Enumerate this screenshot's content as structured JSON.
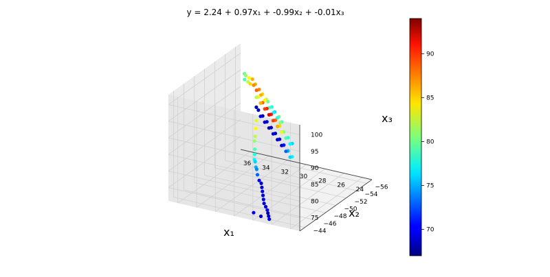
{
  "chart_data": {
    "type": "scatter",
    "projection": "3d",
    "title": "y = 2.24 + 0.97x₁ + -0.99x₂ + -0.01x₃",
    "xlabel": "x₁",
    "ylabel": "x₂",
    "zlabel": "x₃",
    "xlim": [
      23,
      37
    ],
    "ylim": [
      -57,
      -43
    ],
    "zlim": [
      71,
      103
    ],
    "x_ticks": [
      24,
      26,
      28,
      30,
      32,
      34,
      36
    ],
    "y_ticks": [
      -44,
      -46,
      -48,
      -50,
      -52,
      -54,
      -56
    ],
    "z_ticks": [
      75,
      80,
      85,
      90,
      95,
      100
    ],
    "colorbar": {
      "cmap": "jet",
      "range": [
        67,
        94
      ],
      "ticks": [
        70,
        75,
        80,
        85,
        90
      ]
    },
    "grid": true,
    "points": [
      {
        "x": 35.5,
        "y": -55,
        "z": 97,
        "c": 80
      },
      {
        "x": 35.2,
        "y": -54.5,
        "z": 96,
        "c": 79
      },
      {
        "x": 34.8,
        "y": -54,
        "z": 98,
        "c": 81
      },
      {
        "x": 34.3,
        "y": -53.5,
        "z": 97,
        "c": 82
      },
      {
        "x": 33.9,
        "y": -53,
        "z": 99,
        "c": 84
      },
      {
        "x": 33.5,
        "y": -52.5,
        "z": 98,
        "c": 85
      },
      {
        "x": 33.1,
        "y": -52.2,
        "z": 100,
        "c": 86
      },
      {
        "x": 32.7,
        "y": -51.7,
        "z": 99,
        "c": 87
      },
      {
        "x": 32.3,
        "y": -51.3,
        "z": 100,
        "c": 86
      },
      {
        "x": 31.9,
        "y": -50.8,
        "z": 99,
        "c": 88
      },
      {
        "x": 31.4,
        "y": -50.4,
        "z": 100,
        "c": 87
      },
      {
        "x": 31,
        "y": -50,
        "z": 99,
        "c": 86
      },
      {
        "x": 30.6,
        "y": -49.6,
        "z": 100,
        "c": 85
      },
      {
        "x": 30.1,
        "y": -49.1,
        "z": 99,
        "c": 84
      },
      {
        "x": 29.7,
        "y": -48.7,
        "z": 100,
        "c": 82
      },
      {
        "x": 29.3,
        "y": -48.3,
        "z": 100,
        "c": 80
      },
      {
        "x": 28.9,
        "y": -47.8,
        "z": 99,
        "c": 79
      },
      {
        "x": 28.4,
        "y": -47.4,
        "z": 100,
        "c": 78
      },
      {
        "x": 28,
        "y": -47,
        "z": 99,
        "c": 77
      },
      {
        "x": 27.6,
        "y": -46.5,
        "z": 100,
        "c": 76
      },
      {
        "x": 27.1,
        "y": -46.1,
        "z": 99,
        "c": 78
      },
      {
        "x": 26.7,
        "y": -45.7,
        "z": 100,
        "c": 80
      },
      {
        "x": 26.3,
        "y": -45.2,
        "z": 99,
        "c": 81
      },
      {
        "x": 25.9,
        "y": -44.8,
        "z": 100,
        "c": 79
      },
      {
        "x": 34.5,
        "y": -55.5,
        "z": 90,
        "c": 82
      },
      {
        "x": 34,
        "y": -55,
        "z": 91,
        "c": 84
      },
      {
        "x": 33.5,
        "y": -54.5,
        "z": 90,
        "c": 86
      },
      {
        "x": 33,
        "y": -54,
        "z": 91,
        "c": 88
      },
      {
        "x": 32.5,
        "y": -53.5,
        "z": 90,
        "c": 89
      },
      {
        "x": 32,
        "y": -53,
        "z": 91,
        "c": 90
      },
      {
        "x": 31.5,
        "y": -52.5,
        "z": 90,
        "c": 91
      },
      {
        "x": 31,
        "y": -52,
        "z": 91,
        "c": 90
      },
      {
        "x": 30.5,
        "y": -51.5,
        "z": 90,
        "c": 89
      },
      {
        "x": 30,
        "y": -51,
        "z": 91,
        "c": 88
      },
      {
        "x": 29.5,
        "y": -50.5,
        "z": 90,
        "c": 86
      },
      {
        "x": 29,
        "y": -50,
        "z": 91,
        "c": 85
      },
      {
        "x": 28.5,
        "y": -49.5,
        "z": 90,
        "c": 83
      },
      {
        "x": 28,
        "y": -49,
        "z": 91,
        "c": 81
      },
      {
        "x": 27.5,
        "y": -48.5,
        "z": 90,
        "c": 79
      },
      {
        "x": 27,
        "y": -48,
        "z": 91,
        "c": 78
      },
      {
        "x": 26.5,
        "y": -47.5,
        "z": 90,
        "c": 77
      },
      {
        "x": 26,
        "y": -47,
        "z": 91,
        "c": 76
      },
      {
        "x": 34.5,
        "y": -55.5,
        "z": 87,
        "c": 68
      },
      {
        "x": 34,
        "y": -55,
        "z": 87,
        "c": 69
      },
      {
        "x": 33.5,
        "y": -54.5,
        "z": 86,
        "c": 70
      },
      {
        "x": 33,
        "y": -54,
        "z": 87,
        "c": 68
      },
      {
        "x": 32.5,
        "y": -53.5,
        "z": 86,
        "c": 69
      },
      {
        "x": 32,
        "y": -53,
        "z": 87,
        "c": 70
      },
      {
        "x": 31.5,
        "y": -52.5,
        "z": 86,
        "c": 68
      },
      {
        "x": 31,
        "y": -52,
        "z": 87,
        "c": 69
      },
      {
        "x": 30.5,
        "y": -51.5,
        "z": 86,
        "c": 70
      },
      {
        "x": 30,
        "y": -51,
        "z": 87,
        "c": 68
      },
      {
        "x": 29.5,
        "y": -50.5,
        "z": 86,
        "c": 69
      },
      {
        "x": 29,
        "y": -50,
        "z": 87,
        "c": 70
      },
      {
        "x": 28.5,
        "y": -49.5,
        "z": 86,
        "c": 69
      },
      {
        "x": 28,
        "y": -49,
        "z": 87,
        "c": 71
      },
      {
        "x": 27.5,
        "y": -48.5,
        "z": 86,
        "c": 73
      },
      {
        "x": 27,
        "y": -48,
        "z": 87,
        "c": 75
      },
      {
        "x": 26.5,
        "y": -47.5,
        "z": 86,
        "c": 76
      },
      {
        "x": 26,
        "y": -47,
        "z": 87,
        "c": 77
      },
      {
        "x": 34.5,
        "y": -55.5,
        "z": 83,
        "c": 83
      },
      {
        "x": 34.4,
        "y": -55.2,
        "z": 81,
        "c": 84
      },
      {
        "x": 34.3,
        "y": -54.9,
        "z": 79,
        "c": 82
      },
      {
        "x": 34.2,
        "y": -54.6,
        "z": 78,
        "c": 81
      },
      {
        "x": 34,
        "y": -54.3,
        "z": 76,
        "c": 79
      },
      {
        "x": 33.8,
        "y": -53.9,
        "z": 75,
        "c": 78
      },
      {
        "x": 33.6,
        "y": -53.5,
        "z": 74,
        "c": 77
      },
      {
        "x": 33.3,
        "y": -53.1,
        "z": 74,
        "c": 76
      },
      {
        "x": 33,
        "y": -52.7,
        "z": 73,
        "c": 75
      },
      {
        "x": 32.7,
        "y": -52.3,
        "z": 73,
        "c": 74
      },
      {
        "x": 32.4,
        "y": -51.9,
        "z": 72,
        "c": 73
      },
      {
        "x": 32,
        "y": -51.5,
        "z": 71,
        "c": 70
      },
      {
        "x": 31.5,
        "y": -51,
        "z": 71,
        "c": 69
      },
      {
        "x": 31,
        "y": -50.2,
        "z": 71,
        "c": 69
      },
      {
        "x": 30.5,
        "y": -49.4,
        "z": 71,
        "c": 70
      },
      {
        "x": 30,
        "y": -48.6,
        "z": 71,
        "c": 69
      },
      {
        "x": 29.5,
        "y": -47.8,
        "z": 71,
        "c": 70
      },
      {
        "x": 29,
        "y": -47,
        "z": 71,
        "c": 69
      },
      {
        "x": 28.5,
        "y": -46.4,
        "z": 71,
        "c": 69
      },
      {
        "x": 28,
        "y": -45.8,
        "z": 71,
        "c": 70
      },
      {
        "x": 27.6,
        "y": -45.2,
        "z": 71,
        "c": 68
      },
      {
        "x": 27.2,
        "y": -44.6,
        "z": 71,
        "c": 69
      },
      {
        "x": 26.8,
        "y": -44,
        "z": 71,
        "c": 70
      },
      {
        "x": 27.8,
        "y": -44.2,
        "z": 71,
        "c": 69
      },
      {
        "x": 28.8,
        "y": -44.6,
        "z": 71,
        "c": 70
      }
    ]
  }
}
